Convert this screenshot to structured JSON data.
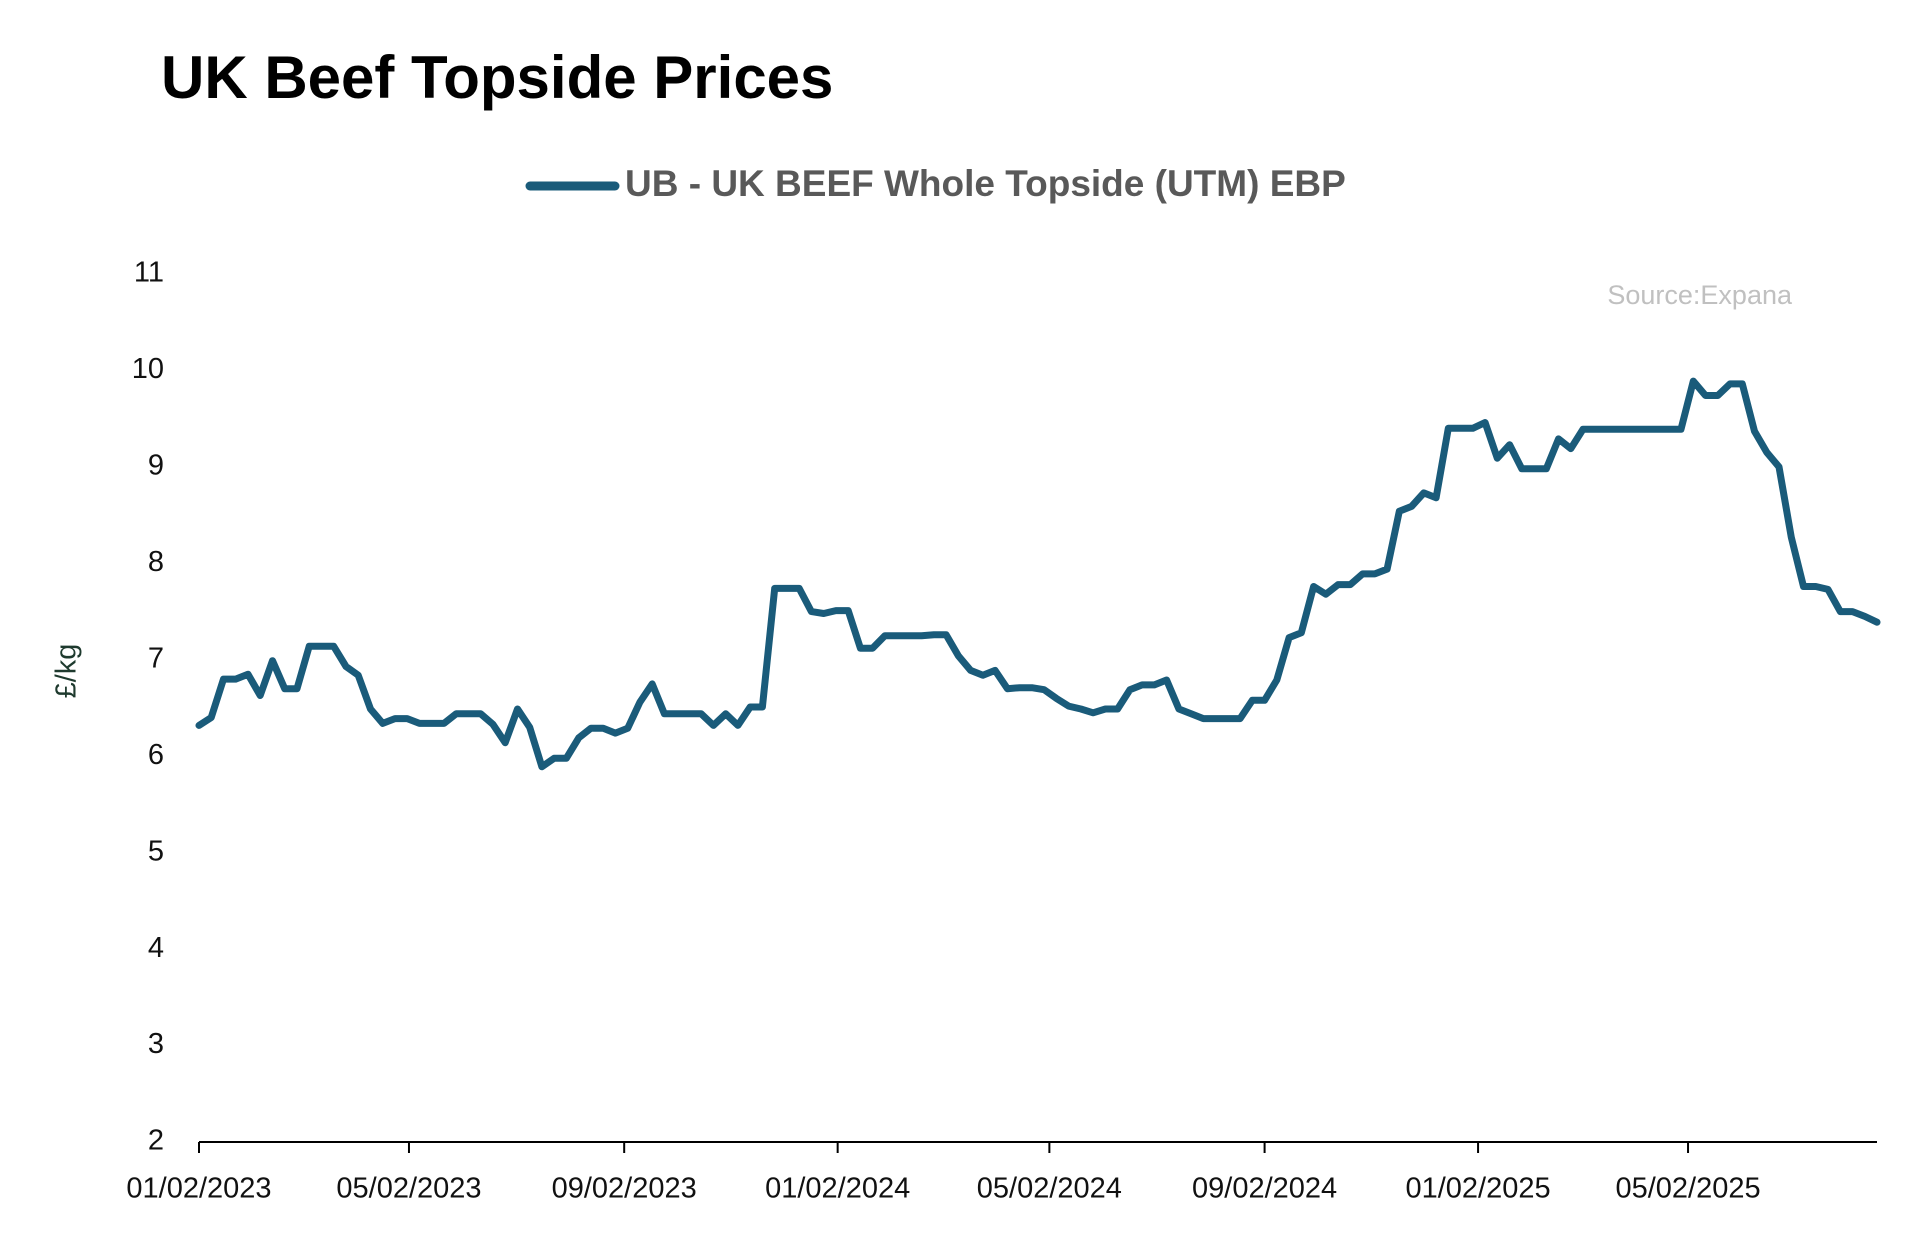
{
  "chart_data": {
    "type": "line",
    "title": "UK Beef Topside Prices",
    "ylabel": "£/kg",
    "annotation": "Source:Expana",
    "x": [
      "2023-01-02",
      "2023-01-09",
      "2023-01-16",
      "2023-01-23",
      "2023-01-30",
      "2023-02-06",
      "2023-02-13",
      "2023-02-20",
      "2023-02-27",
      "2023-03-06",
      "2023-03-13",
      "2023-03-20",
      "2023-03-27",
      "2023-04-03",
      "2023-04-10",
      "2023-04-17",
      "2023-04-24",
      "2023-05-01",
      "2023-05-08",
      "2023-05-15",
      "2023-05-22",
      "2023-05-29",
      "2023-06-05",
      "2023-06-12",
      "2023-06-19",
      "2023-06-26",
      "2023-07-03",
      "2023-07-10",
      "2023-07-17",
      "2023-07-24",
      "2023-07-31",
      "2023-08-07",
      "2023-08-14",
      "2023-08-21",
      "2023-08-28",
      "2023-09-04",
      "2023-09-11",
      "2023-09-18",
      "2023-09-25",
      "2023-10-02",
      "2023-10-09",
      "2023-10-16",
      "2023-10-23",
      "2023-10-30",
      "2023-11-06",
      "2023-11-13",
      "2023-11-20",
      "2023-11-27",
      "2023-12-04",
      "2023-12-11",
      "2023-12-18",
      "2023-12-25",
      "2024-01-01",
      "2024-01-08",
      "2024-01-15",
      "2024-01-22",
      "2024-01-29",
      "2024-02-05",
      "2024-02-12",
      "2024-02-19",
      "2024-02-26",
      "2024-03-04",
      "2024-03-11",
      "2024-03-18",
      "2024-03-25",
      "2024-04-01",
      "2024-04-08",
      "2024-04-15",
      "2024-04-22",
      "2024-04-29",
      "2024-05-06",
      "2024-05-13",
      "2024-05-20",
      "2024-05-27",
      "2024-06-03",
      "2024-06-10",
      "2024-06-17",
      "2024-06-24",
      "2024-07-01",
      "2024-07-08",
      "2024-07-15",
      "2024-07-22",
      "2024-07-29",
      "2024-08-05",
      "2024-08-12",
      "2024-08-19",
      "2024-08-26",
      "2024-09-02",
      "2024-09-09",
      "2024-09-16",
      "2024-09-23",
      "2024-09-30",
      "2024-10-07",
      "2024-10-14",
      "2024-10-21",
      "2024-10-28",
      "2024-11-04",
      "2024-11-11",
      "2024-11-18",
      "2024-11-25",
      "2024-12-02",
      "2024-12-09",
      "2024-12-16",
      "2024-12-23",
      "2024-12-30",
      "2025-01-06",
      "2025-01-13",
      "2025-01-20",
      "2025-01-27",
      "2025-02-03",
      "2025-02-10",
      "2025-02-17",
      "2025-02-24",
      "2025-03-03",
      "2025-03-10",
      "2025-03-17",
      "2025-03-24",
      "2025-03-31",
      "2025-04-07",
      "2025-04-14",
      "2025-04-21",
      "2025-04-28",
      "2025-05-05",
      "2025-05-12",
      "2025-05-19",
      "2025-05-26",
      "2025-06-02",
      "2025-06-09",
      "2025-06-16",
      "2025-06-23",
      "2025-06-30",
      "2025-07-07",
      "2025-07-14",
      "2025-07-21",
      "2025-07-28",
      "2025-08-04",
      "2025-08-11",
      "2025-08-18"
    ],
    "series": [
      {
        "name": "UB - UK BEEF Whole Topside (UTM) EBP",
        "color": "#1a5b7a",
        "values": [
          6.32,
          6.4,
          6.8,
          6.8,
          6.85,
          6.63,
          6.99,
          6.7,
          6.7,
          7.14,
          7.14,
          7.14,
          6.93,
          6.84,
          6.49,
          6.34,
          6.39,
          6.39,
          6.34,
          6.34,
          6.34,
          6.44,
          6.44,
          6.44,
          6.33,
          6.14,
          6.49,
          6.3,
          5.89,
          5.98,
          5.98,
          6.19,
          6.29,
          6.29,
          6.24,
          6.29,
          6.56,
          6.75,
          6.44,
          6.44,
          6.44,
          6.44,
          6.32,
          6.44,
          6.32,
          6.51,
          6.51,
          7.74,
          7.74,
          7.74,
          7.5,
          7.48,
          7.51,
          7.51,
          7.12,
          7.12,
          7.25,
          7.25,
          7.25,
          7.25,
          7.26,
          7.26,
          7.04,
          6.89,
          6.84,
          6.89,
          6.7,
          6.71,
          6.71,
          6.69,
          6.6,
          6.52,
          6.49,
          6.45,
          6.49,
          6.49,
          6.69,
          6.74,
          6.74,
          6.79,
          6.49,
          6.44,
          6.39,
          6.39,
          6.39,
          6.39,
          6.58,
          6.58,
          6.79,
          7.23,
          7.28,
          7.76,
          7.68,
          7.78,
          7.78,
          7.89,
          7.89,
          7.94,
          8.54,
          8.59,
          8.73,
          8.68,
          9.4,
          9.4,
          9.4,
          9.46,
          9.09,
          9.23,
          8.98,
          8.98,
          8.98,
          9.29,
          9.19,
          9.39,
          9.39,
          9.39,
          9.39,
          9.39,
          9.39,
          9.39,
          9.39,
          9.39,
          9.89,
          9.74,
          9.74,
          9.86,
          9.86,
          9.37,
          9.15,
          9.0,
          8.27,
          7.76,
          7.76,
          7.73,
          7.5,
          7.5,
          7.45,
          7.39
        ]
      }
    ],
    "xlim": [
      "2023-01-02",
      "2025-08-18"
    ],
    "xticks": [
      {
        "value": "2023-01-02",
        "label": "01/02/2023"
      },
      {
        "value": "2023-05-02",
        "label": "05/02/2023"
      },
      {
        "value": "2023-09-02",
        "label": "09/02/2023"
      },
      {
        "value": "2024-01-02",
        "label": "01/02/2024"
      },
      {
        "value": "2024-05-02",
        "label": "05/02/2024"
      },
      {
        "value": "2024-09-02",
        "label": "09/02/2024"
      },
      {
        "value": "2025-01-02",
        "label": "01/02/2025"
      },
      {
        "value": "2025-05-02",
        "label": "05/02/2025"
      }
    ],
    "ylim": [
      2,
      11
    ],
    "yticks": [
      2,
      3,
      4,
      5,
      6,
      7,
      8,
      9,
      10,
      11
    ],
    "grid": false,
    "legend": "top"
  }
}
